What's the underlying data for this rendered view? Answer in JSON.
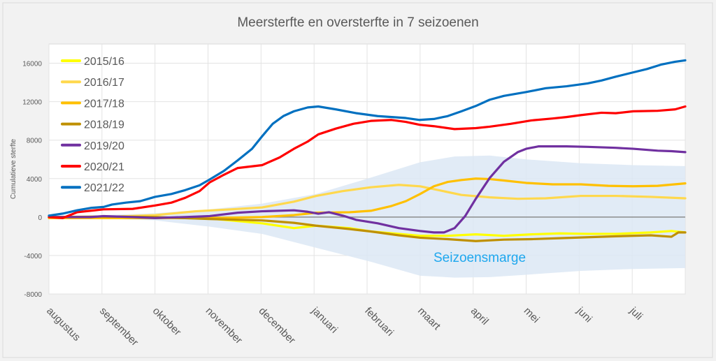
{
  "chart_data": {
    "type": "line",
    "title": "Meersterfte en oversterfte in 7 seizoenen",
    "xlabel": "",
    "ylabel": "Cumulatieve sterfte",
    "ylim": [
      -8000,
      18000
    ],
    "xlim": [
      0,
      12
    ],
    "yticks": [
      -8000,
      -4000,
      0,
      4000,
      8000,
      12000,
      16000
    ],
    "categories": [
      "augustus",
      "september",
      "oktober",
      "november",
      "december",
      "januari",
      "februari",
      "maart",
      "april",
      "mei",
      "juni",
      "juli"
    ],
    "grid": true,
    "legend_position": "top-left",
    "band": {
      "label": "Seizoensmarge",
      "color": "#dce8f5",
      "label_color": "#1ea7ee",
      "upper": [
        [
          0,
          0
        ],
        [
          2.0,
          400
        ],
        [
          3.03,
          800
        ],
        [
          4.02,
          1400
        ],
        [
          5.04,
          2400
        ],
        [
          6.07,
          4100
        ],
        [
          7.0,
          5700
        ],
        [
          7.65,
          6300
        ],
        [
          8.31,
          6400
        ],
        [
          9.0,
          6000
        ],
        [
          10.03,
          5600
        ],
        [
          11.02,
          5400
        ],
        [
          12,
          5300
        ]
      ],
      "lower": [
        [
          0,
          0
        ],
        [
          2.0,
          -350
        ],
        [
          3.03,
          -1000
        ],
        [
          4.02,
          -1750
        ],
        [
          5.04,
          -3200
        ],
        [
          6.07,
          -4650
        ],
        [
          7.0,
          -6100
        ],
        [
          7.65,
          -6300
        ],
        [
          8.31,
          -6250
        ],
        [
          9.0,
          -6000
        ],
        [
          10.03,
          -5600
        ],
        [
          11.02,
          -5400
        ],
        [
          12,
          -5300
        ]
      ]
    },
    "series": [
      {
        "name": "2015/16",
        "color": "#ffff00",
        "points": [
          [
            0,
            -50
          ],
          [
            1.0,
            0
          ],
          [
            2.0,
            -50
          ],
          [
            3.03,
            -150
          ],
          [
            4.02,
            -650
          ],
          [
            4.62,
            -1150
          ],
          [
            5.04,
            -900
          ],
          [
            5.67,
            -1150
          ],
          [
            6.07,
            -1500
          ],
          [
            6.6,
            -1750
          ],
          [
            7.0,
            -1950
          ],
          [
            7.52,
            -1950
          ],
          [
            8.05,
            -1800
          ],
          [
            8.58,
            -1950
          ],
          [
            9.1,
            -1800
          ],
          [
            9.63,
            -1700
          ],
          [
            10.16,
            -1750
          ],
          [
            10.69,
            -1750
          ],
          [
            11.35,
            -1600
          ],
          [
            11.74,
            -1450
          ],
          [
            12,
            -1600
          ]
        ]
      },
      {
        "name": "2016/17",
        "color": "#ffd84d",
        "points": [
          [
            0,
            -50
          ],
          [
            1.0,
            0
          ],
          [
            2.0,
            200
          ],
          [
            2.77,
            600
          ],
          [
            3.43,
            800
          ],
          [
            4.02,
            1000
          ],
          [
            4.62,
            1600
          ],
          [
            5.04,
            2200
          ],
          [
            5.54,
            2700
          ],
          [
            6.07,
            3100
          ],
          [
            6.6,
            3350
          ],
          [
            7.0,
            3200
          ],
          [
            7.39,
            2750
          ],
          [
            7.78,
            2300
          ],
          [
            8.31,
            2050
          ],
          [
            8.84,
            1900
          ],
          [
            9.37,
            1950
          ],
          [
            10.03,
            2200
          ],
          [
            10.69,
            2200
          ],
          [
            11.35,
            2100
          ],
          [
            12,
            1950
          ]
        ]
      },
      {
        "name": "2017/18",
        "color": "#ffc000",
        "points": [
          [
            0,
            -100
          ],
          [
            1.0,
            -100
          ],
          [
            2.0,
            -100
          ],
          [
            3.03,
            -100
          ],
          [
            4.02,
            0
          ],
          [
            4.62,
            200
          ],
          [
            5.04,
            450
          ],
          [
            5.67,
            500
          ],
          [
            6.07,
            650
          ],
          [
            6.46,
            1150
          ],
          [
            6.73,
            1650
          ],
          [
            7.0,
            2400
          ],
          [
            7.26,
            3200
          ],
          [
            7.52,
            3650
          ],
          [
            7.78,
            3850
          ],
          [
            8.05,
            4000
          ],
          [
            8.31,
            3950
          ],
          [
            8.58,
            3800
          ],
          [
            9.0,
            3550
          ],
          [
            9.5,
            3400
          ],
          [
            10.03,
            3400
          ],
          [
            10.55,
            3250
          ],
          [
            11.02,
            3200
          ],
          [
            11.48,
            3250
          ],
          [
            12,
            3500
          ]
        ]
      },
      {
        "name": "2018/19",
        "color": "#bf9000",
        "points": [
          [
            0,
            0
          ],
          [
            1.0,
            50
          ],
          [
            2.0,
            0
          ],
          [
            3.03,
            -200
          ],
          [
            4.02,
            -350
          ],
          [
            4.62,
            -600
          ],
          [
            5.04,
            -900
          ],
          [
            5.67,
            -1250
          ],
          [
            6.07,
            -1500
          ],
          [
            6.6,
            -1900
          ],
          [
            7.0,
            -2150
          ],
          [
            7.52,
            -2300
          ],
          [
            8.05,
            -2500
          ],
          [
            8.58,
            -2350
          ],
          [
            9.1,
            -2300
          ],
          [
            9.63,
            -2200
          ],
          [
            10.16,
            -2100
          ],
          [
            10.69,
            -2000
          ],
          [
            11.35,
            -1900
          ],
          [
            11.74,
            -2050
          ],
          [
            11.87,
            -1600
          ],
          [
            12,
            -1600
          ]
        ]
      },
      {
        "name": "2019/20",
        "color": "#7030a0",
        "points": [
          [
            0,
            0
          ],
          [
            0.79,
            0
          ],
          [
            1.03,
            100
          ],
          [
            1.58,
            0
          ],
          [
            2.0,
            -100
          ],
          [
            2.57,
            0
          ],
          [
            3.03,
            100
          ],
          [
            3.56,
            450
          ],
          [
            4.02,
            600
          ],
          [
            4.62,
            700
          ],
          [
            4.88,
            550
          ],
          [
            5.08,
            350
          ],
          [
            5.28,
            500
          ],
          [
            5.54,
            150
          ],
          [
            5.8,
            -300
          ],
          [
            6.2,
            -650
          ],
          [
            6.6,
            -1150
          ],
          [
            7.0,
            -1450
          ],
          [
            7.26,
            -1600
          ],
          [
            7.45,
            -1600
          ],
          [
            7.65,
            -1150
          ],
          [
            7.85,
            100
          ],
          [
            8.05,
            1900
          ],
          [
            8.31,
            4050
          ],
          [
            8.58,
            5750
          ],
          [
            8.84,
            6750
          ],
          [
            9.0,
            7100
          ],
          [
            9.23,
            7350
          ],
          [
            9.76,
            7350
          ],
          [
            10.16,
            7300
          ],
          [
            10.69,
            7200
          ],
          [
            11.02,
            7100
          ],
          [
            11.48,
            6900
          ],
          [
            11.74,
            6850
          ],
          [
            12,
            6750
          ]
        ]
      },
      {
        "name": "2020/21",
        "color": "#ff0000",
        "points": [
          [
            0,
            0
          ],
          [
            0.26,
            -100
          ],
          [
            0.53,
            500
          ],
          [
            1.03,
            800
          ],
          [
            1.58,
            850
          ],
          [
            2.0,
            1200
          ],
          [
            2.31,
            1500
          ],
          [
            2.57,
            2000
          ],
          [
            2.84,
            2700
          ],
          [
            3.03,
            3600
          ],
          [
            3.3,
            4400
          ],
          [
            3.56,
            5100
          ],
          [
            4.02,
            5400
          ],
          [
            4.35,
            6200
          ],
          [
            4.62,
            7100
          ],
          [
            4.88,
            7850
          ],
          [
            5.08,
            8600
          ],
          [
            5.41,
            9200
          ],
          [
            5.74,
            9700
          ],
          [
            6.07,
            10000
          ],
          [
            6.46,
            10100
          ],
          [
            6.73,
            9900
          ],
          [
            6.99,
            9600
          ],
          [
            7.26,
            9450
          ],
          [
            7.65,
            9150
          ],
          [
            8.05,
            9250
          ],
          [
            8.31,
            9400
          ],
          [
            8.71,
            9700
          ],
          [
            9.1,
            10050
          ],
          [
            9.5,
            10250
          ],
          [
            9.76,
            10400
          ],
          [
            10.03,
            10600
          ],
          [
            10.42,
            10850
          ],
          [
            10.69,
            10800
          ],
          [
            11.02,
            11000
          ],
          [
            11.48,
            11050
          ],
          [
            11.81,
            11200
          ],
          [
            12,
            11500
          ]
        ]
      },
      {
        "name": "2021/22",
        "color": "#0070c0",
        "points": [
          [
            0,
            150
          ],
          [
            0.26,
            360
          ],
          [
            0.53,
            700
          ],
          [
            0.79,
            950
          ],
          [
            1.03,
            1050
          ],
          [
            1.19,
            1300
          ],
          [
            1.45,
            1500
          ],
          [
            1.72,
            1650
          ],
          [
            2.0,
            2100
          ],
          [
            2.31,
            2400
          ],
          [
            2.57,
            2800
          ],
          [
            2.84,
            3300
          ],
          [
            3.03,
            3900
          ],
          [
            3.3,
            4800
          ],
          [
            3.56,
            5900
          ],
          [
            3.83,
            7100
          ],
          [
            4.02,
            8400
          ],
          [
            4.22,
            9700
          ],
          [
            4.42,
            10500
          ],
          [
            4.62,
            11000
          ],
          [
            4.88,
            11400
          ],
          [
            5.08,
            11500
          ],
          [
            5.41,
            11200
          ],
          [
            5.8,
            10800
          ],
          [
            6.2,
            10500
          ],
          [
            6.73,
            10300
          ],
          [
            6.99,
            10100
          ],
          [
            7.26,
            10200
          ],
          [
            7.52,
            10500
          ],
          [
            7.78,
            11000
          ],
          [
            8.05,
            11550
          ],
          [
            8.31,
            12200
          ],
          [
            8.58,
            12600
          ],
          [
            9.0,
            13000
          ],
          [
            9.37,
            13400
          ],
          [
            9.76,
            13600
          ],
          [
            10.16,
            13900
          ],
          [
            10.42,
            14200
          ],
          [
            10.69,
            14600
          ],
          [
            11.02,
            15050
          ],
          [
            11.28,
            15400
          ],
          [
            11.54,
            15850
          ],
          [
            11.81,
            16150
          ],
          [
            12,
            16300
          ]
        ]
      }
    ]
  }
}
